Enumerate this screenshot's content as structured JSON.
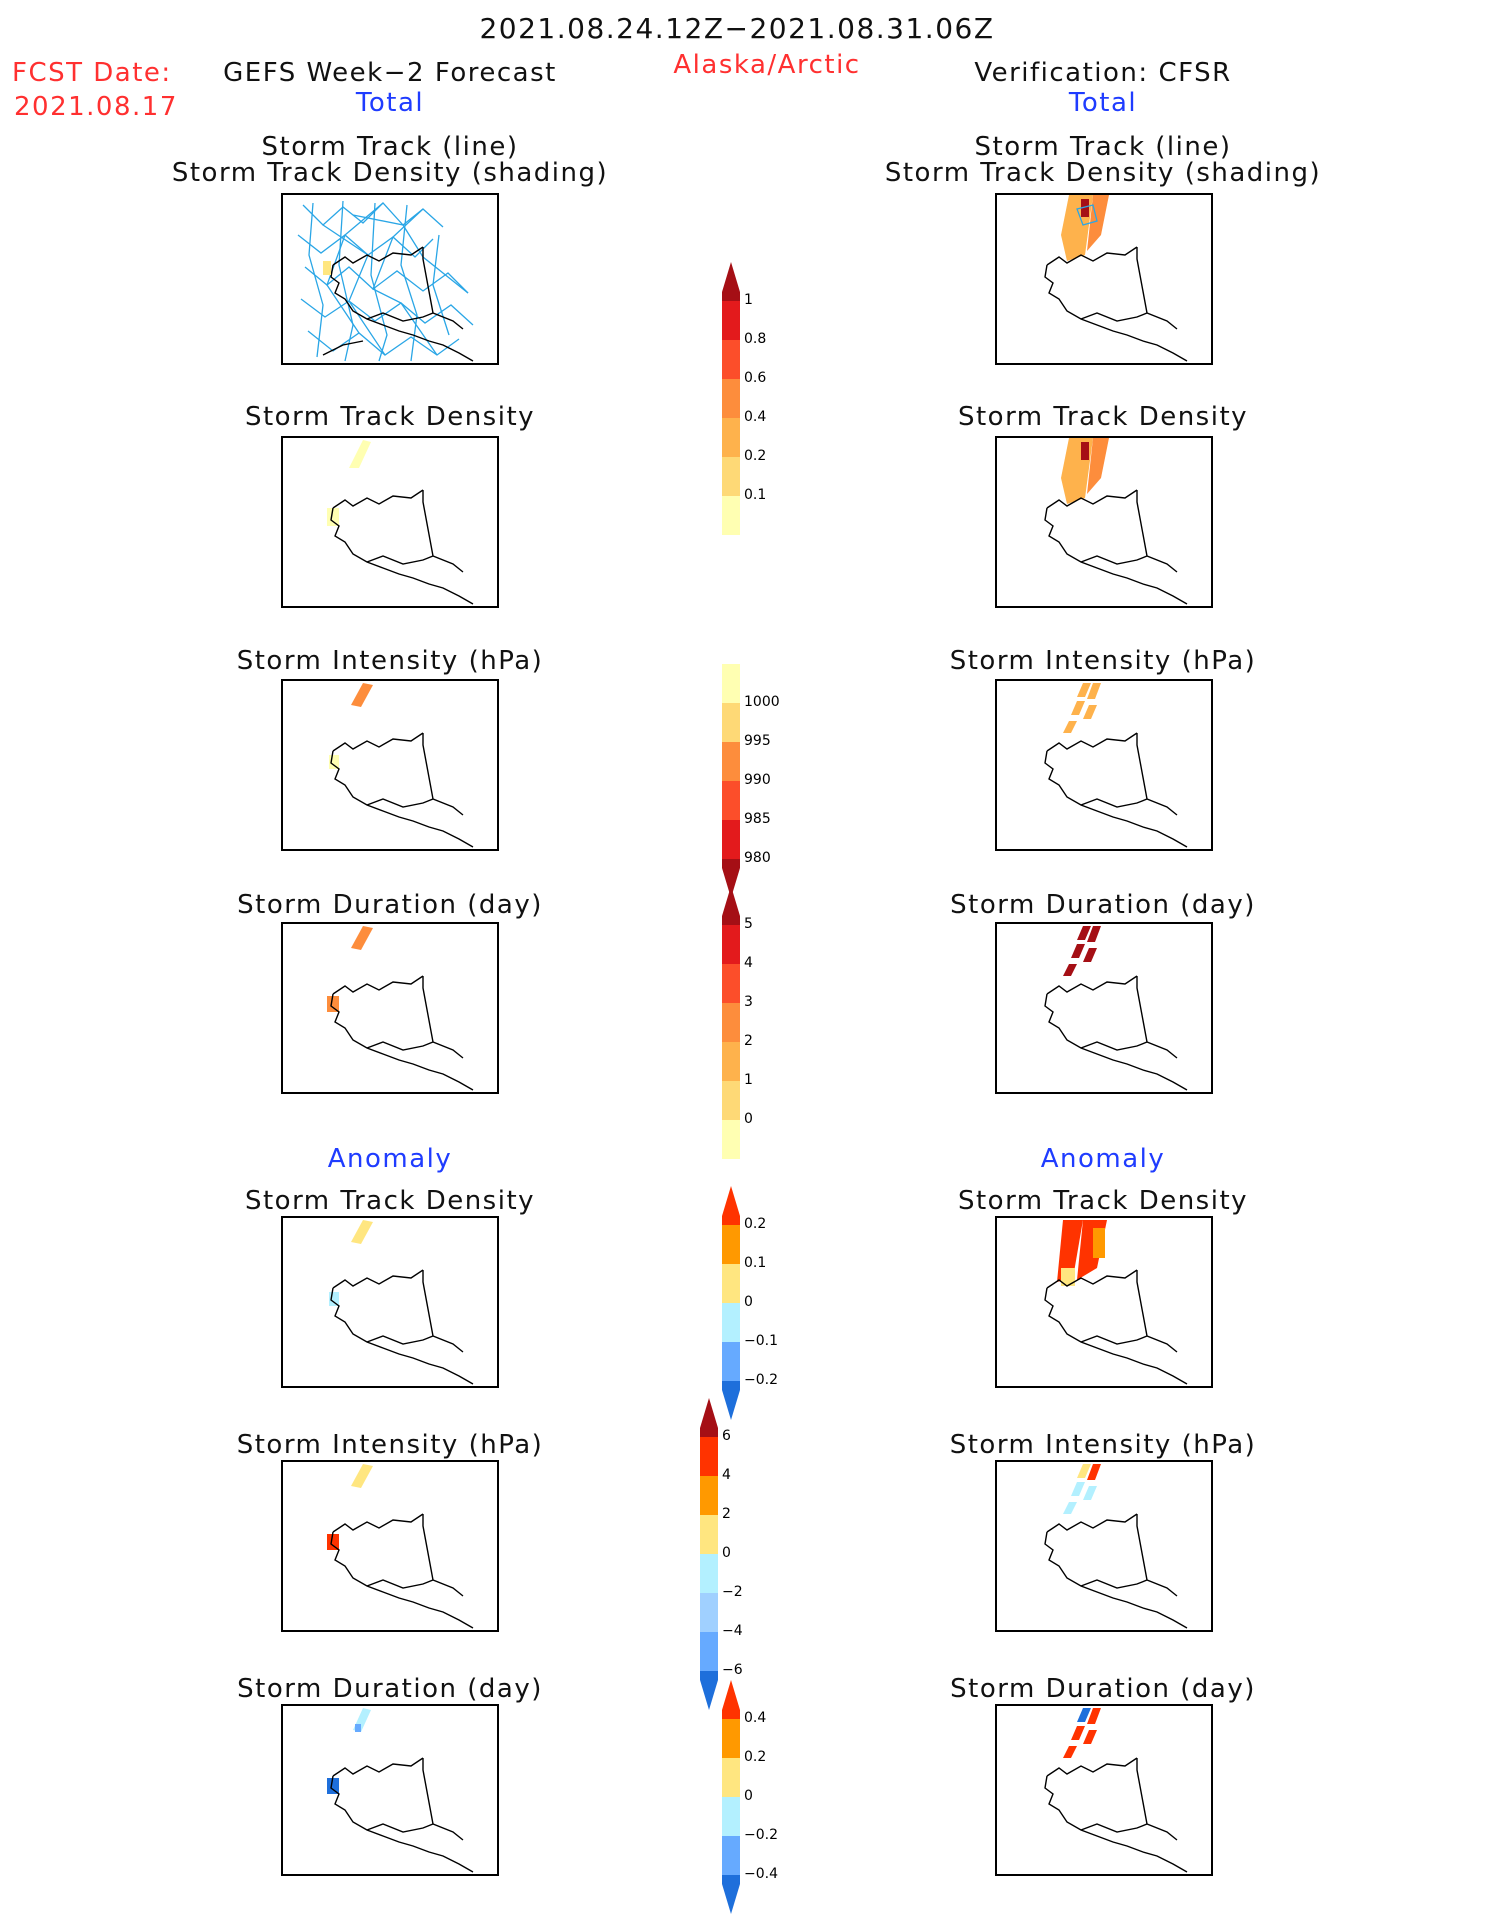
{
  "header": {
    "date_range": "2021.08.24.12Z−2021.08.31.06Z",
    "fcst_label": "FCST Date:",
    "fcst_date": "2021.08.17",
    "left_title": "GEFS Week−2 Forecast",
    "region": "Alaska/Arctic",
    "right_title": "Verification: CFSR"
  },
  "sections": {
    "total": "Total",
    "anomaly": "Anomaly"
  },
  "panel_titles": {
    "track_line": "Storm Track (line)",
    "track_shading": "Storm Track Density (shading)",
    "density": "Storm Track Density",
    "intensity": "Storm Intensity (hPa)",
    "duration": "Storm Duration (day)"
  },
  "colorbars": {
    "density_total": {
      "ticks": [
        "1",
        "0.8",
        "0.6",
        "0.4",
        "0.2",
        "0.1"
      ],
      "colors": [
        "#a50f15",
        "#e31a1c",
        "#fc4e2a",
        "#fd8d3c",
        "#feb24c",
        "#fed976",
        "#ffffb2"
      ]
    },
    "intensity_total": {
      "ticks": [
        "1000",
        "995",
        "990",
        "985",
        "980"
      ],
      "colors": [
        "#ffffb2",
        "#fed976",
        "#fd8d3c",
        "#fc4e2a",
        "#e31a1c",
        "#a50f15"
      ]
    },
    "duration_total": {
      "ticks": [
        "5",
        "4",
        "3",
        "2",
        "1",
        "0"
      ],
      "colors": [
        "#a50f15",
        "#e31a1c",
        "#fc4e2a",
        "#fd8d3c",
        "#feb24c",
        "#fed976",
        "#ffffb2"
      ]
    },
    "density_anom": {
      "ticks": [
        "0.2",
        "0.1",
        "0",
        "−0.1",
        "−0.2"
      ],
      "colors": [
        "#ff3300",
        "#ff9900",
        "#ffe680",
        "#b3f0ff",
        "#66aaff",
        "#1e6fdb"
      ]
    },
    "intensity_anom": {
      "ticks": [
        "6",
        "4",
        "2",
        "0",
        "−2",
        "−4",
        "−6"
      ],
      "colors": [
        "#a50f15",
        "#ff3300",
        "#ff9900",
        "#ffe680",
        "#b3f0ff",
        "#a0d0ff",
        "#66aaff",
        "#1e6fdb"
      ]
    },
    "duration_anom": {
      "ticks": [
        "0.4",
        "0.2",
        "0",
        "−0.2",
        "−0.4"
      ],
      "colors": [
        "#ff3300",
        "#ff9900",
        "#ffe680",
        "#b3f0ff",
        "#66aaff",
        "#1e6fdb"
      ]
    }
  },
  "colors": {
    "title_red": "#ff3030",
    "section_blue": "#1f3cff",
    "track_line": "#2aa6e6"
  }
}
